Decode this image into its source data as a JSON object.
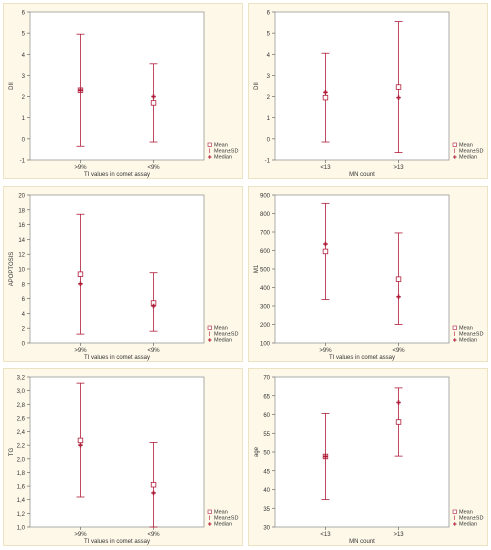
{
  "colors": {
    "panel_bg": "#fdf8e8",
    "plot_bg": "#ffffff",
    "series": "#b01e3a",
    "axis": "#555555",
    "grid_border": "#999999"
  },
  "chart_data": [
    {
      "type": "errorbar",
      "xlabel": "TI values in comet assay",
      "ylabel": "DII",
      "ylim": [
        -1,
        6
      ],
      "yticks": [
        "-1",
        "0",
        "1",
        "2",
        "3",
        "4",
        "5",
        "6"
      ],
      "categories": [
        ">9%",
        "<9%"
      ],
      "mean": [
        2.3,
        1.7
      ],
      "median": [
        2.3,
        2.0
      ],
      "sd_low": [
        -0.35,
        -0.15
      ],
      "sd_high": [
        4.95,
        3.55
      ],
      "legend": [
        "Mean",
        "Mean±SD",
        "Median"
      ]
    },
    {
      "type": "errorbar",
      "xlabel": "MN count",
      "ylabel": "DII",
      "ylim": [
        -1,
        6
      ],
      "yticks": [
        "-1",
        "0",
        "1",
        "2",
        "3",
        "4",
        "5",
        "6"
      ],
      "categories": [
        "<13",
        ">13"
      ],
      "mean": [
        1.95,
        2.45
      ],
      "median": [
        2.2,
        1.95
      ],
      "sd_low": [
        -0.15,
        -0.65
      ],
      "sd_high": [
        4.05,
        5.55
      ],
      "legend": [
        "Mean",
        "Mean±SD",
        "Median"
      ]
    },
    {
      "type": "errorbar",
      "xlabel": "TI values in comet assay",
      "ylabel": "APOPTOSIS",
      "ylim": [
        0,
        20
      ],
      "yticks": [
        "0",
        "2",
        "4",
        "6",
        "8",
        "10",
        "12",
        "14",
        "16",
        "18",
        "20"
      ],
      "categories": [
        ">9%",
        "<9%"
      ],
      "mean": [
        9.3,
        5.4
      ],
      "median": [
        8.0,
        5.0
      ],
      "sd_low": [
        1.2,
        1.6
      ],
      "sd_high": [
        17.4,
        9.5
      ],
      "legend": [
        "Mean",
        "Mean±SD",
        "Median"
      ]
    },
    {
      "type": "errorbar",
      "xlabel": "TI values in comet assay",
      "ylabel": "M1",
      "ylim": [
        100,
        900
      ],
      "yticks": [
        "100",
        "200",
        "300",
        "400",
        "500",
        "600",
        "700",
        "800",
        "900"
      ],
      "categories": [
        ">9%",
        "<9%"
      ],
      "mean": [
        595,
        445
      ],
      "median": [
        635,
        350
      ],
      "sd_low": [
        335,
        200
      ],
      "sd_high": [
        855,
        695
      ],
      "legend": [
        "Mean",
        "Mean±SD",
        "Median"
      ]
    },
    {
      "type": "errorbar",
      "xlabel": "TI values in comet assay",
      "ylabel": "TG",
      "ylim": [
        1.0,
        3.2
      ],
      "yticks": [
        "1,0",
        "1,2",
        "1,4",
        "1,6",
        "1,8",
        "2,0",
        "2,2",
        "2,4",
        "2,6",
        "2,8",
        "3,0",
        "3,2"
      ],
      "categories": [
        ">9%",
        "<9%"
      ],
      "mean": [
        2.27,
        1.62
      ],
      "median": [
        2.2,
        1.5
      ],
      "sd_low": [
        1.44,
        1.0
      ],
      "sd_high": [
        3.11,
        2.24
      ],
      "legend": [
        "Mean",
        "Mean±SD",
        "Median"
      ]
    },
    {
      "type": "errorbar",
      "xlabel": "MN count",
      "ylabel": "age",
      "ylim": [
        30,
        70
      ],
      "yticks": [
        "30",
        "35",
        "40",
        "45",
        "50",
        "55",
        "60",
        "65",
        "70"
      ],
      "categories": [
        "<13",
        ">13"
      ],
      "mean": [
        48.8,
        58.0
      ],
      "median": [
        48.8,
        63.2
      ],
      "sd_low": [
        37.3,
        48.9
      ],
      "sd_high": [
        60.3,
        67.1
      ],
      "legend": [
        "Mean",
        "Mean±SD",
        "Median"
      ]
    }
  ]
}
